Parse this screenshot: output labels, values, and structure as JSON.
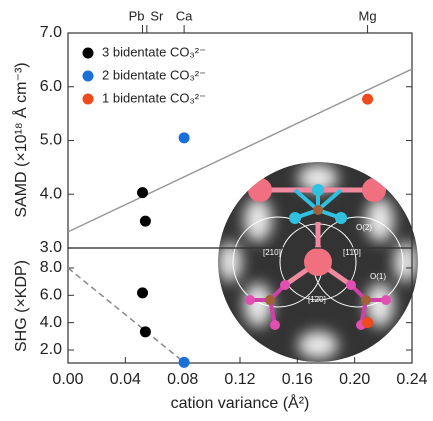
{
  "chart_data": [
    {
      "type": "scatter",
      "ylabel": "SAMD (×10¹⁸ Å cm⁻³)",
      "xlim": [
        0,
        0.24
      ],
      "ylim": [
        3,
        7
      ],
      "yticks": [
        {
          "value": 3,
          "label": "3.0"
        },
        {
          "value": 4,
          "label": "4.0"
        },
        {
          "value": 5,
          "label": "5.0"
        },
        {
          "value": 6,
          "label": "6.0"
        },
        {
          "value": 7,
          "label": "7.0"
        }
      ],
      "top_ticks": [
        {
          "value": 0.052,
          "label": "Pb"
        },
        {
          "value": 0.055,
          "label": "Sr"
        },
        {
          "value": 0.081,
          "label": "Ca"
        },
        {
          "value": 0.209,
          "label": "Mg"
        }
      ],
      "series": [
        {
          "name": "3 bidentate CO₃²⁻",
          "color": "#000000",
          "x": [
            0.052,
            0.054
          ],
          "values": [
            4.03,
            3.5
          ]
        },
        {
          "name": "2 bidentate CO₃²⁻",
          "color": "#1a6fd8",
          "x": [
            0.081
          ],
          "values": [
            5.05
          ]
        },
        {
          "name": "1 bidentate CO₃²⁻",
          "color": "#ee4a1c",
          "x": [
            0.209
          ],
          "values": [
            5.77
          ]
        }
      ],
      "fit_line": {
        "color": "#999999",
        "x": [
          0,
          0.24
        ],
        "values": [
          3.3,
          6.33
        ]
      }
    },
    {
      "type": "scatter",
      "ylabel": "SHG (×KDP)",
      "xlabel": "cation variance (Å²)",
      "xlim": [
        0,
        0.24
      ],
      "ylim": [
        1.05,
        9.46
      ],
      "xticks": [
        {
          "value": 0,
          "label": "0.00"
        },
        0.04,
        0.08,
        0.12,
        0.16,
        {
          "value": 0.2,
          "label": "0.20"
        },
        0.24
      ],
      "yticks": [
        {
          "value": 2,
          "label": "2.0"
        },
        {
          "value": 4,
          "label": "4.0"
        },
        {
          "value": 6,
          "label": "6.0"
        },
        {
          "value": 8,
          "label": "8.0"
        }
      ],
      "series": [
        {
          "color": "#000000",
          "x": [
            0.052,
            0.054
          ],
          "values": [
            6.18,
            3.33
          ]
        },
        {
          "color": "#1a6fd8",
          "x": [
            0.081
          ],
          "values": [
            1.1
          ]
        },
        {
          "color": "#ee4a1c",
          "x": [
            0.209
          ],
          "values": [
            4.0
          ]
        }
      ],
      "fit_line": {
        "color": "#888888",
        "dashed": true,
        "x": [
          0,
          0.081
        ],
        "values": [
          8.0,
          1.1
        ]
      }
    }
  ],
  "inset": {
    "labels": [
      "O(2)",
      "O(1)",
      "[210]",
      "[1̄10]",
      "[1̄2̄0]"
    ]
  }
}
